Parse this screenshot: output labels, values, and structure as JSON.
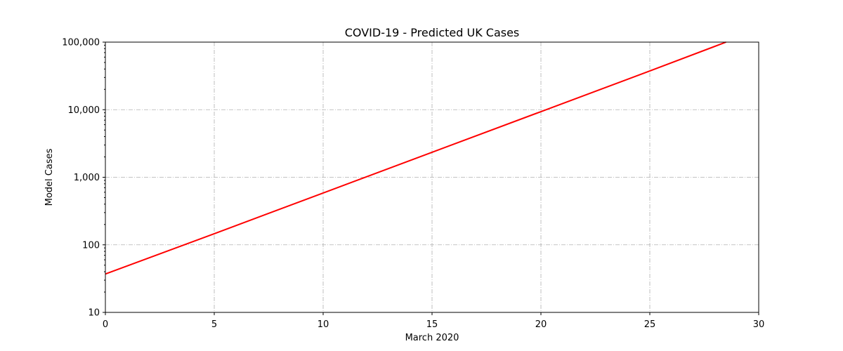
{
  "chart_data": {
    "type": "line",
    "title": "COVID-19 - Predicted UK Cases",
    "xlabel": "March 2020",
    "ylabel": "Model Cases",
    "xlim": [
      0,
      30
    ],
    "ylim": [
      10,
      100000
    ],
    "yscale": "log",
    "grid": true,
    "x_ticks": [
      0,
      5,
      10,
      15,
      20,
      25,
      30
    ],
    "x_tick_labels": [
      "0",
      "5",
      "10",
      "15",
      "20",
      "25",
      "30"
    ],
    "y_ticks": [
      10,
      100,
      1000,
      10000,
      100000
    ],
    "y_tick_labels": [
      "10",
      "100",
      "1,000",
      "10,000",
      "100,000"
    ],
    "series": [
      {
        "color": "#ff0000",
        "x": [
          0,
          5,
          10,
          15,
          20,
          25,
          28.5
        ],
        "y": [
          37,
          146,
          585,
          2340,
          9360,
          37400,
          100000
        ]
      }
    ]
  }
}
